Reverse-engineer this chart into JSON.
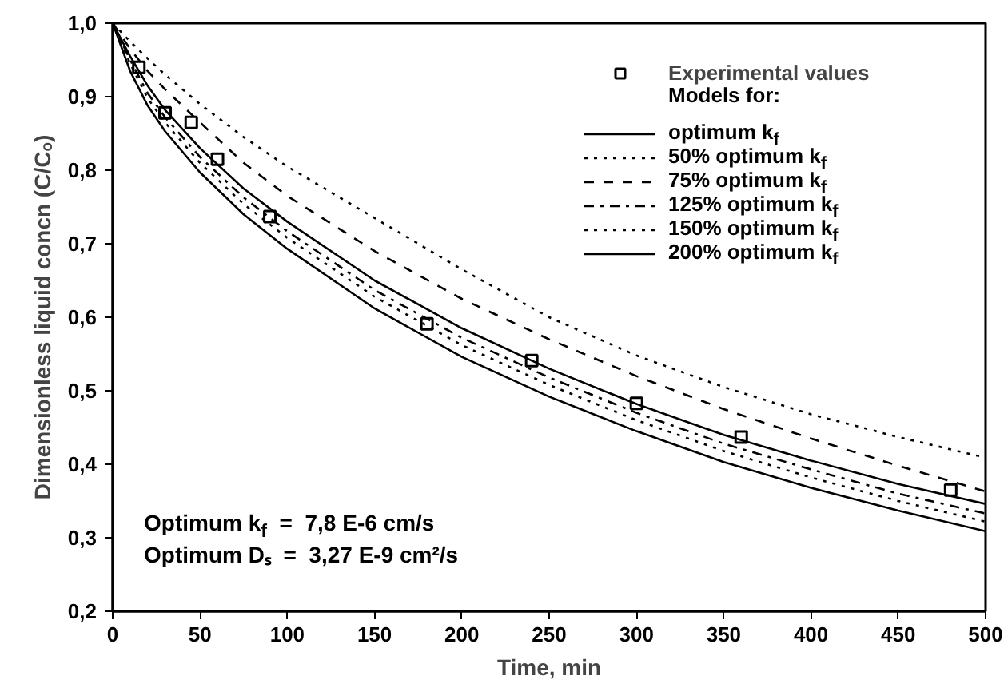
{
  "chart_data": {
    "type": "line",
    "xlabel": "Time, min",
    "ylabel": "Dimensionless liquid concn (C/Cₒ)",
    "legend_title": "Models for:",
    "legend": "top right",
    "grid": false,
    "xlim": [
      0,
      500
    ],
    "ylim": [
      0.2,
      1.0
    ],
    "xticks": [
      0,
      50,
      100,
      150,
      200,
      250,
      300,
      350,
      400,
      450,
      500
    ],
    "yticks": [
      {
        "value": 0.2,
        "label": "0,2"
      },
      {
        "value": 0.3,
        "label": "0,3"
      },
      {
        "value": 0.4,
        "label": "0,4"
      },
      {
        "value": 0.5,
        "label": "0,5"
      },
      {
        "value": 0.6,
        "label": "0,6"
      },
      {
        "value": 0.7,
        "label": "0,7"
      },
      {
        "value": 0.8,
        "label": "0,8"
      },
      {
        "value": 0.9,
        "label": "0,9"
      },
      {
        "value": 1.0,
        "label": "1,0"
      }
    ],
    "annotations": [
      "Optimum k$_{f}$  =  7,8 E-6 cm/s",
      "Optimum Dₛ  =  3,27 E-9 cm²/s"
    ],
    "series": [
      {
        "name": "Experimental values",
        "type": "scatter",
        "marker": "square",
        "color": "#000000",
        "x": [
          15,
          30,
          45,
          60,
          90,
          180,
          240,
          300,
          360,
          480
        ],
        "values": [
          0.94,
          0.878,
          0.865,
          0.815,
          0.737,
          0.591,
          0.541,
          0.483,
          0.437,
          0.365
        ]
      },
      {
        "name": "optimum k$_{f}$",
        "type": "line",
        "line_style": "solid",
        "color": "#000000",
        "x": [
          0,
          10,
          20,
          30,
          50,
          75,
          100,
          150,
          200,
          250,
          300,
          350,
          400,
          450,
          500
        ],
        "values": [
          1.0,
          0.955,
          0.915,
          0.882,
          0.83,
          0.775,
          0.73,
          0.65,
          0.585,
          0.53,
          0.482,
          0.44,
          0.405,
          0.373,
          0.346
        ]
      },
      {
        "name": "50% optimum k$_{f}$",
        "type": "line",
        "line_style": "dotted",
        "color": "#000000",
        "x": [
          0,
          10,
          20,
          30,
          50,
          75,
          100,
          150,
          200,
          250,
          300,
          350,
          400,
          450,
          500
        ],
        "values": [
          1.0,
          0.975,
          0.952,
          0.93,
          0.89,
          0.845,
          0.805,
          0.735,
          0.665,
          0.6,
          0.548,
          0.505,
          0.468,
          0.437,
          0.409
        ]
      },
      {
        "name": "75% optimum k$_{f}$",
        "type": "line",
        "line_style": "dashed",
        "color": "#000000",
        "x": [
          0,
          10,
          20,
          30,
          50,
          75,
          100,
          150,
          200,
          250,
          300,
          350,
          400,
          450,
          500
        ],
        "values": [
          1.0,
          0.965,
          0.935,
          0.91,
          0.865,
          0.81,
          0.765,
          0.69,
          0.625,
          0.57,
          0.52,
          0.475,
          0.435,
          0.398,
          0.363
        ]
      },
      {
        "name": "125% optimum k$_{f}$",
        "type": "line",
        "line_style": "dashdot",
        "color": "#000000",
        "x": [
          0,
          10,
          20,
          30,
          50,
          75,
          100,
          150,
          200,
          250,
          300,
          350,
          400,
          450,
          500
        ],
        "values": [
          1.0,
          0.95,
          0.905,
          0.872,
          0.818,
          0.763,
          0.717,
          0.637,
          0.572,
          0.518,
          0.47,
          0.428,
          0.393,
          0.36,
          0.333
        ]
      },
      {
        "name": "150% optimum k$_{f}$",
        "type": "line",
        "line_style": "dotted",
        "color": "#000000",
        "x": [
          0,
          10,
          20,
          30,
          50,
          75,
          100,
          150,
          200,
          250,
          300,
          350,
          400,
          450,
          500
        ],
        "values": [
          1.0,
          0.945,
          0.898,
          0.865,
          0.81,
          0.754,
          0.708,
          0.628,
          0.562,
          0.508,
          0.46,
          0.418,
          0.382,
          0.35,
          0.322
        ]
      },
      {
        "name": "200% optimum k$_{f}$",
        "type": "line",
        "line_style": "solid",
        "color": "#000000",
        "x": [
          0,
          10,
          20,
          30,
          50,
          75,
          100,
          150,
          200,
          250,
          300,
          350,
          400,
          450,
          500
        ],
        "values": [
          1.0,
          0.935,
          0.888,
          0.853,
          0.797,
          0.74,
          0.693,
          0.612,
          0.546,
          0.492,
          0.445,
          0.403,
          0.368,
          0.337,
          0.309
        ]
      }
    ]
  }
}
